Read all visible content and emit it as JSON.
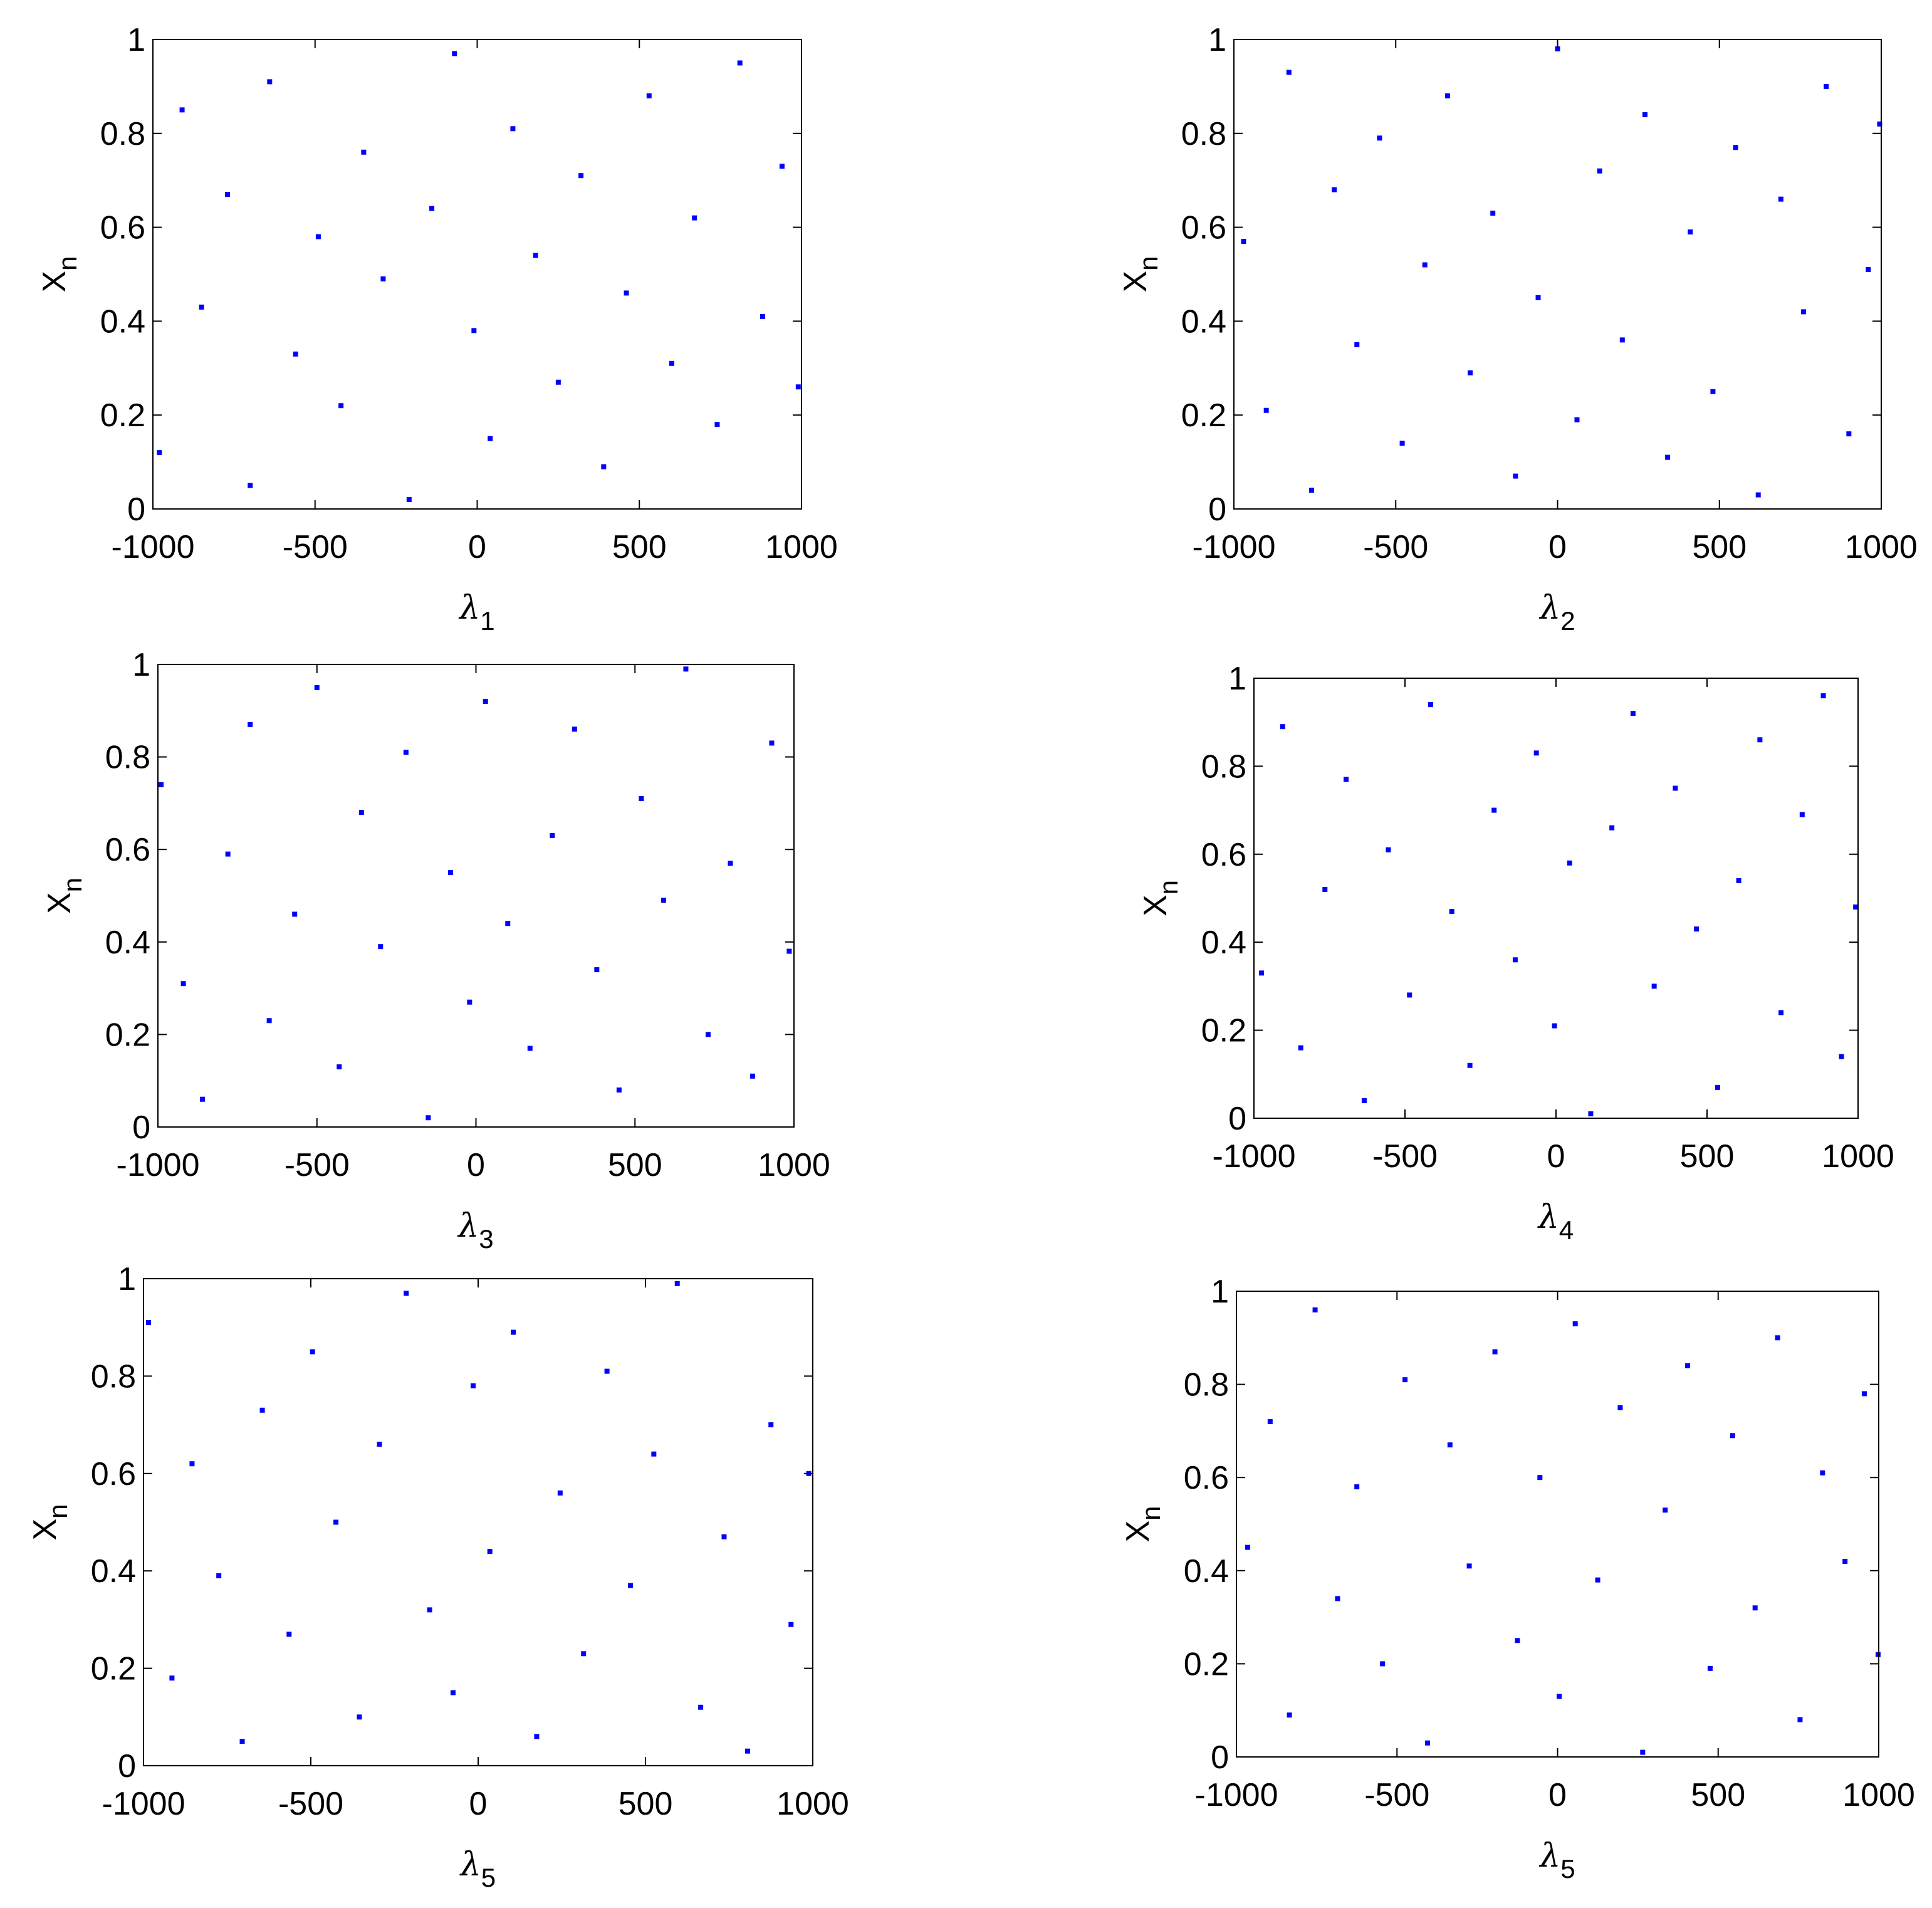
{
  "chart_data": [
    {
      "type": "scatter",
      "color": "#0000ff",
      "xlabel": "λ",
      "xlabel_subscript": "1",
      "ylabel": "X",
      "ylabel_subscript": "n",
      "xlim": [
        -1000,
        1000
      ],
      "ylim": [
        0,
        1
      ],
      "xticks": [
        -1000,
        -500,
        0,
        500,
        1000
      ],
      "yticks": [
        0,
        0.2,
        0.4,
        0.6,
        0.8,
        1
      ],
      "x": [
        -980,
        -910,
        -850,
        -770,
        -700,
        -640,
        -560,
        -490,
        -420,
        -350,
        -290,
        -210,
        -140,
        -70,
        -10,
        40,
        110,
        180,
        250,
        320,
        390,
        460,
        530,
        600,
        670,
        740,
        810,
        880,
        940,
        990
      ],
      "values": [
        0.12,
        0.85,
        0.43,
        0.67,
        0.05,
        0.91,
        0.33,
        0.58,
        0.22,
        0.76,
        0.49,
        0.02,
        0.64,
        0.97,
        0.38,
        0.15,
        0.81,
        0.54,
        0.27,
        0.71,
        0.09,
        0.46,
        0.88,
        0.31,
        0.62,
        0.18,
        0.95,
        0.41,
        0.73,
        0.26
      ]
    },
    {
      "type": "scatter",
      "color": "#0000ff",
      "xlabel": "λ",
      "xlabel_subscript": "2",
      "ylabel": "X",
      "ylabel_subscript": "n",
      "xlim": [
        -1000,
        1000
      ],
      "ylim": [
        0,
        1
      ],
      "xticks": [
        -1000,
        -500,
        0,
        500,
        1000
      ],
      "yticks": [
        0,
        0.2,
        0.4,
        0.6,
        0.8,
        1
      ],
      "x": [
        -970,
        -900,
        -830,
        -760,
        -690,
        -620,
        -550,
        -480,
        -410,
        -340,
        -270,
        -200,
        -130,
        -60,
        0,
        60,
        130,
        200,
        270,
        340,
        410,
        480,
        550,
        620,
        690,
        760,
        830,
        900,
        960,
        995
      ],
      "values": [
        0.57,
        0.21,
        0.93,
        0.04,
        0.68,
        0.35,
        0.79,
        0.14,
        0.52,
        0.88,
        0.29,
        0.63,
        0.07,
        0.45,
        0.98,
        0.19,
        0.72,
        0.36,
        0.84,
        0.11,
        0.59,
        0.25,
        0.77,
        0.03,
        0.66,
        0.42,
        0.9,
        0.16,
        0.51,
        0.82
      ]
    },
    {
      "type": "scatter",
      "color": "#0000ff",
      "xlabel": "λ",
      "xlabel_subscript": "3",
      "ylabel": "X",
      "ylabel_subscript": "n",
      "xlim": [
        -1000,
        1000
      ],
      "ylim": [
        0,
        1
      ],
      "xticks": [
        -1000,
        -500,
        0,
        500,
        1000
      ],
      "yticks": [
        0,
        0.2,
        0.4,
        0.6,
        0.8,
        1
      ],
      "x": [
        -990,
        -920,
        -860,
        -780,
        -710,
        -650,
        -570,
        -500,
        -430,
        -360,
        -300,
        -220,
        -150,
        -80,
        -20,
        30,
        100,
        170,
        240,
        310,
        380,
        450,
        520,
        590,
        660,
        730,
        800,
        870,
        930,
        985
      ],
      "values": [
        0.74,
        0.31,
        0.06,
        0.59,
        0.87,
        0.23,
        0.46,
        0.95,
        0.13,
        0.68,
        0.39,
        0.81,
        0.02,
        0.55,
        0.27,
        0.92,
        0.44,
        0.17,
        0.63,
        0.86,
        0.34,
        0.08,
        0.71,
        0.49,
        0.99,
        0.2,
        0.57,
        0.11,
        0.83,
        0.38
      ]
    },
    {
      "type": "scatter",
      "color": "#0000ff",
      "xlabel": "λ",
      "xlabel_subscript": "4",
      "ylabel": "X",
      "ylabel_subscript": "n",
      "xlim": [
        -1000,
        1000
      ],
      "ylim": [
        0,
        1
      ],
      "xticks": [
        -1000,
        -500,
        0,
        500,
        1000
      ],
      "yticks": [
        0,
        0.2,
        0.4,
        0.6,
        0.8,
        1
      ],
      "x": [
        -975,
        -905,
        -845,
        -765,
        -695,
        -635,
        -555,
        -485,
        -415,
        -345,
        -285,
        -205,
        -135,
        -65,
        -5,
        45,
        115,
        185,
        255,
        325,
        395,
        465,
        535,
        605,
        675,
        745,
        815,
        885,
        945,
        992
      ],
      "values": [
        0.33,
        0.89,
        0.16,
        0.52,
        0.77,
        0.04,
        0.61,
        0.28,
        0.94,
        0.47,
        0.12,
        0.7,
        0.36,
        0.83,
        0.21,
        0.58,
        0.01,
        0.66,
        0.92,
        0.3,
        0.75,
        0.43,
        0.07,
        0.54,
        0.86,
        0.24,
        0.69,
        0.96,
        0.14,
        0.48
      ]
    },
    {
      "type": "scatter",
      "color": "#0000ff",
      "xlabel": "λ",
      "xlabel_subscript": "5",
      "ylabel": "X",
      "ylabel_subscript": "n",
      "xlim": [
        -1000,
        1000
      ],
      "ylim": [
        0,
        1
      ],
      "xticks": [
        -1000,
        -500,
        0,
        500,
        1000
      ],
      "yticks": [
        0,
        0.2,
        0.4,
        0.6,
        0.8,
        1
      ],
      "x": [
        -985,
        -915,
        -855,
        -775,
        -705,
        -645,
        -565,
        -495,
        -425,
        -355,
        -295,
        -215,
        -145,
        -75,
        -15,
        35,
        105,
        175,
        245,
        315,
        385,
        455,
        525,
        595,
        665,
        735,
        805,
        875,
        935,
        988
      ],
      "values": [
        0.91,
        0.18,
        0.62,
        0.39,
        0.05,
        0.73,
        0.27,
        0.85,
        0.5,
        0.1,
        0.66,
        0.97,
        0.32,
        0.15,
        0.78,
        0.44,
        0.89,
        0.06,
        0.56,
        0.23,
        0.81,
        0.37,
        0.64,
        0.99,
        0.12,
        0.47,
        0.03,
        0.7,
        0.29,
        0.6
      ]
    },
    {
      "type": "scatter",
      "color": "#0000ff",
      "xlabel": "λ",
      "xlabel_subscript": "5",
      "ylabel": "X",
      "ylabel_subscript": "n",
      "xlim": [
        -1000,
        1000
      ],
      "ylim": [
        0,
        1
      ],
      "xticks": [
        -1000,
        -500,
        0,
        500,
        1000
      ],
      "yticks": [
        0,
        0.2,
        0.4,
        0.6,
        0.8,
        1
      ],
      "x": [
        -965,
        -895,
        -835,
        -755,
        -685,
        -625,
        -545,
        -475,
        -405,
        -335,
        -275,
        -195,
        -125,
        -55,
        5,
        55,
        125,
        195,
        265,
        335,
        405,
        475,
        545,
        615,
        685,
        755,
        825,
        895,
        955,
        998
      ],
      "values": [
        0.45,
        0.72,
        0.09,
        0.96,
        0.34,
        0.58,
        0.2,
        0.81,
        0.03,
        0.67,
        0.41,
        0.87,
        0.25,
        0.6,
        0.13,
        0.93,
        0.38,
        0.75,
        0.01,
        0.53,
        0.84,
        0.19,
        0.69,
        0.32,
        0.9,
        0.08,
        0.61,
        0.42,
        0.78,
        0.22
      ]
    }
  ]
}
